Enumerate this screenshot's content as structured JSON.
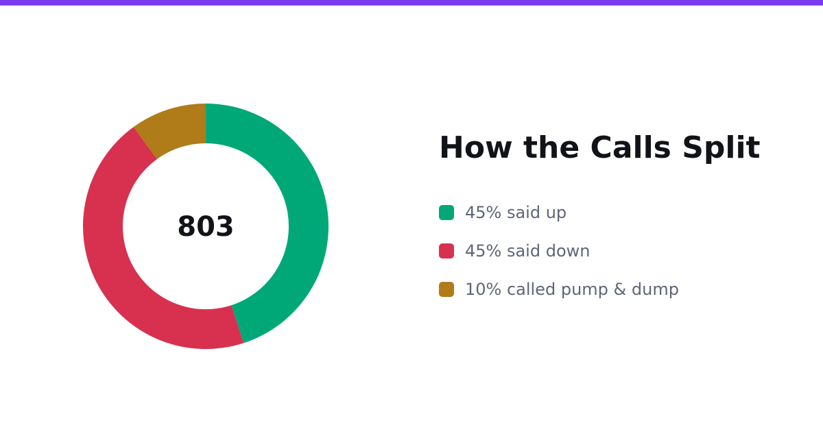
{
  "colors": {
    "accent_bar": "#7c3aed",
    "title_text": "#111318",
    "legend_text": "#5f6577"
  },
  "chart_data": {
    "type": "pie",
    "style": "donut",
    "title": "How the Calls Split",
    "center_value": "803",
    "slices": [
      {
        "label": "45% said up",
        "value": 45,
        "color": "#00a878"
      },
      {
        "label": "45% said down",
        "value": 45,
        "color": "#d7314f"
      },
      {
        "label": "10% called pump & dump",
        "value": 10,
        "color": "#b07b19"
      }
    ],
    "legend_placement": "right"
  }
}
